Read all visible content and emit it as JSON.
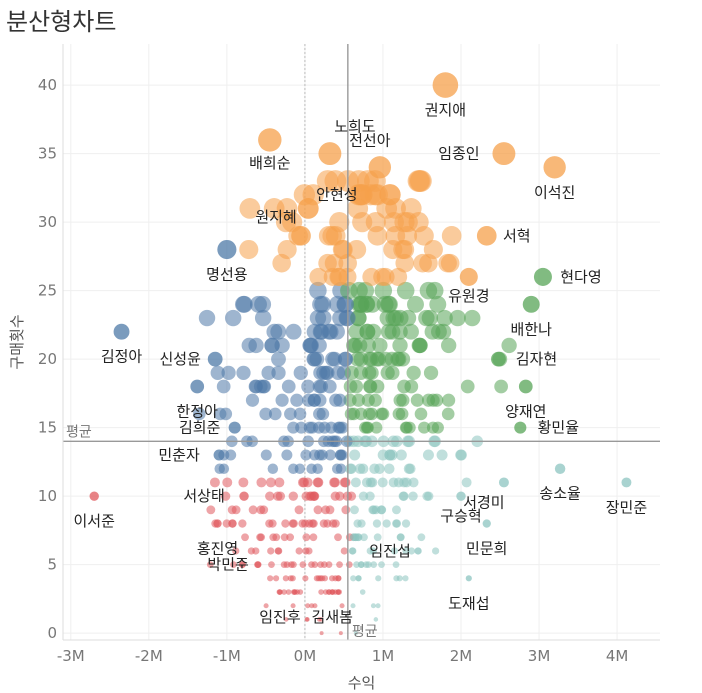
{
  "chart_data": {
    "type": "scatter",
    "title": "분산형차트",
    "xlabel": "수익",
    "ylabel": "구매횟수",
    "xlim": [
      -3100000,
      4550000
    ],
    "ylim": [
      -0.5,
      43
    ],
    "x_ticks": [
      {
        "value": -3000000,
        "label": "-3M"
      },
      {
        "value": -2000000,
        "label": "-2M"
      },
      {
        "value": -1000000,
        "label": "-1M"
      },
      {
        "value": 0,
        "label": "0M"
      },
      {
        "value": 1000000,
        "label": "1M"
      },
      {
        "value": 2000000,
        "label": "2M"
      },
      {
        "value": 3000000,
        "label": "3M"
      },
      {
        "value": 4000000,
        "label": "4M"
      }
    ],
    "y_ticks": [
      0,
      5,
      10,
      15,
      20,
      25,
      30,
      35,
      40
    ],
    "grid": true,
    "reference_lines": {
      "x_avg": 550000,
      "y_avg": 14,
      "x_label": "평균",
      "y_label": "평균"
    },
    "colors": {
      "orange": "#f5a04b",
      "green": "#57a457",
      "blue": "#4e79a7",
      "teal": "#8cc4c0",
      "red": "#e0595e"
    },
    "labeled_points": [
      {
        "name": "권지애",
        "x": 1800000,
        "y": 40,
        "c": "orange"
      },
      {
        "name": "노희도",
        "x": 320000,
        "y": 35,
        "c": "orange"
      },
      {
        "name": "배희순",
        "x": -450000,
        "y": 36,
        "c": "orange"
      },
      {
        "name": "전선아",
        "x": 960000,
        "y": 34,
        "c": "orange"
      },
      {
        "name": "임종인",
        "x": 2550000,
        "y": 35,
        "c": "orange"
      },
      {
        "name": "이석진",
        "x": 3200000,
        "y": 34,
        "c": "orange"
      },
      {
        "name": "안현성",
        "x": 730000,
        "y": 32,
        "c": "orange"
      },
      {
        "name": "원지혜",
        "x": -50000,
        "y": 29,
        "c": "orange"
      },
      {
        "name": "서혁",
        "x": 2330000,
        "y": 29,
        "c": "orange"
      },
      {
        "name": "유원경",
        "x": 2100000,
        "y": 26,
        "c": "orange"
      },
      {
        "name": "명선용",
        "x": -1000000,
        "y": 28,
        "c": "blue"
      },
      {
        "name": "현다영",
        "x": 3050000,
        "y": 26,
        "c": "green"
      },
      {
        "name": "배한나",
        "x": 2900000,
        "y": 24,
        "c": "green"
      },
      {
        "name": "김정아",
        "x": -2350000,
        "y": 22,
        "c": "blue"
      },
      {
        "name": "신성윤",
        "x": -1150000,
        "y": 20,
        "c": "blue"
      },
      {
        "name": "김자현",
        "x": 2480000,
        "y": 20,
        "c": "green"
      },
      {
        "name": "한정아",
        "x": -1380000,
        "y": 18,
        "c": "blue"
      },
      {
        "name": "양재연",
        "x": 2830000,
        "y": 18,
        "c": "green"
      },
      {
        "name": "김희준",
        "x": -900000,
        "y": 15,
        "c": "blue"
      },
      {
        "name": "황민율",
        "x": 2760000,
        "y": 15,
        "c": "green"
      },
      {
        "name": "민춘자",
        "x": -1100000,
        "y": 13,
        "c": "blue"
      },
      {
        "name": "송소율",
        "x": 3270000,
        "y": 12,
        "c": "teal"
      },
      {
        "name": "장민준",
        "x": 4120000,
        "y": 11,
        "c": "teal"
      },
      {
        "name": "이서준",
        "x": -2700000,
        "y": 10,
        "c": "red"
      },
      {
        "name": "서상태",
        "x": -780000,
        "y": 10,
        "c": "red"
      },
      {
        "name": "서경미",
        "x": 2550000,
        "y": 11,
        "c": "teal"
      },
      {
        "name": "구승혁",
        "x": 2000000,
        "y": 10,
        "c": "teal"
      },
      {
        "name": "홍진영",
        "x": -1120000,
        "y": 8,
        "c": "red"
      },
      {
        "name": "민문희",
        "x": 2330000,
        "y": 8,
        "c": "teal"
      },
      {
        "name": "박민준",
        "x": -600000,
        "y": 5,
        "c": "red"
      },
      {
        "name": "임진섭",
        "x": 1450000,
        "y": 6,
        "c": "teal"
      },
      {
        "name": "임진후",
        "x": -320000,
        "y": 3,
        "c": "red"
      },
      {
        "name": "김새봄",
        "x": 350000,
        "y": 3,
        "c": "red"
      },
      {
        "name": "도재섭",
        "x": 2100000,
        "y": 4,
        "c": "teal"
      }
    ]
  }
}
